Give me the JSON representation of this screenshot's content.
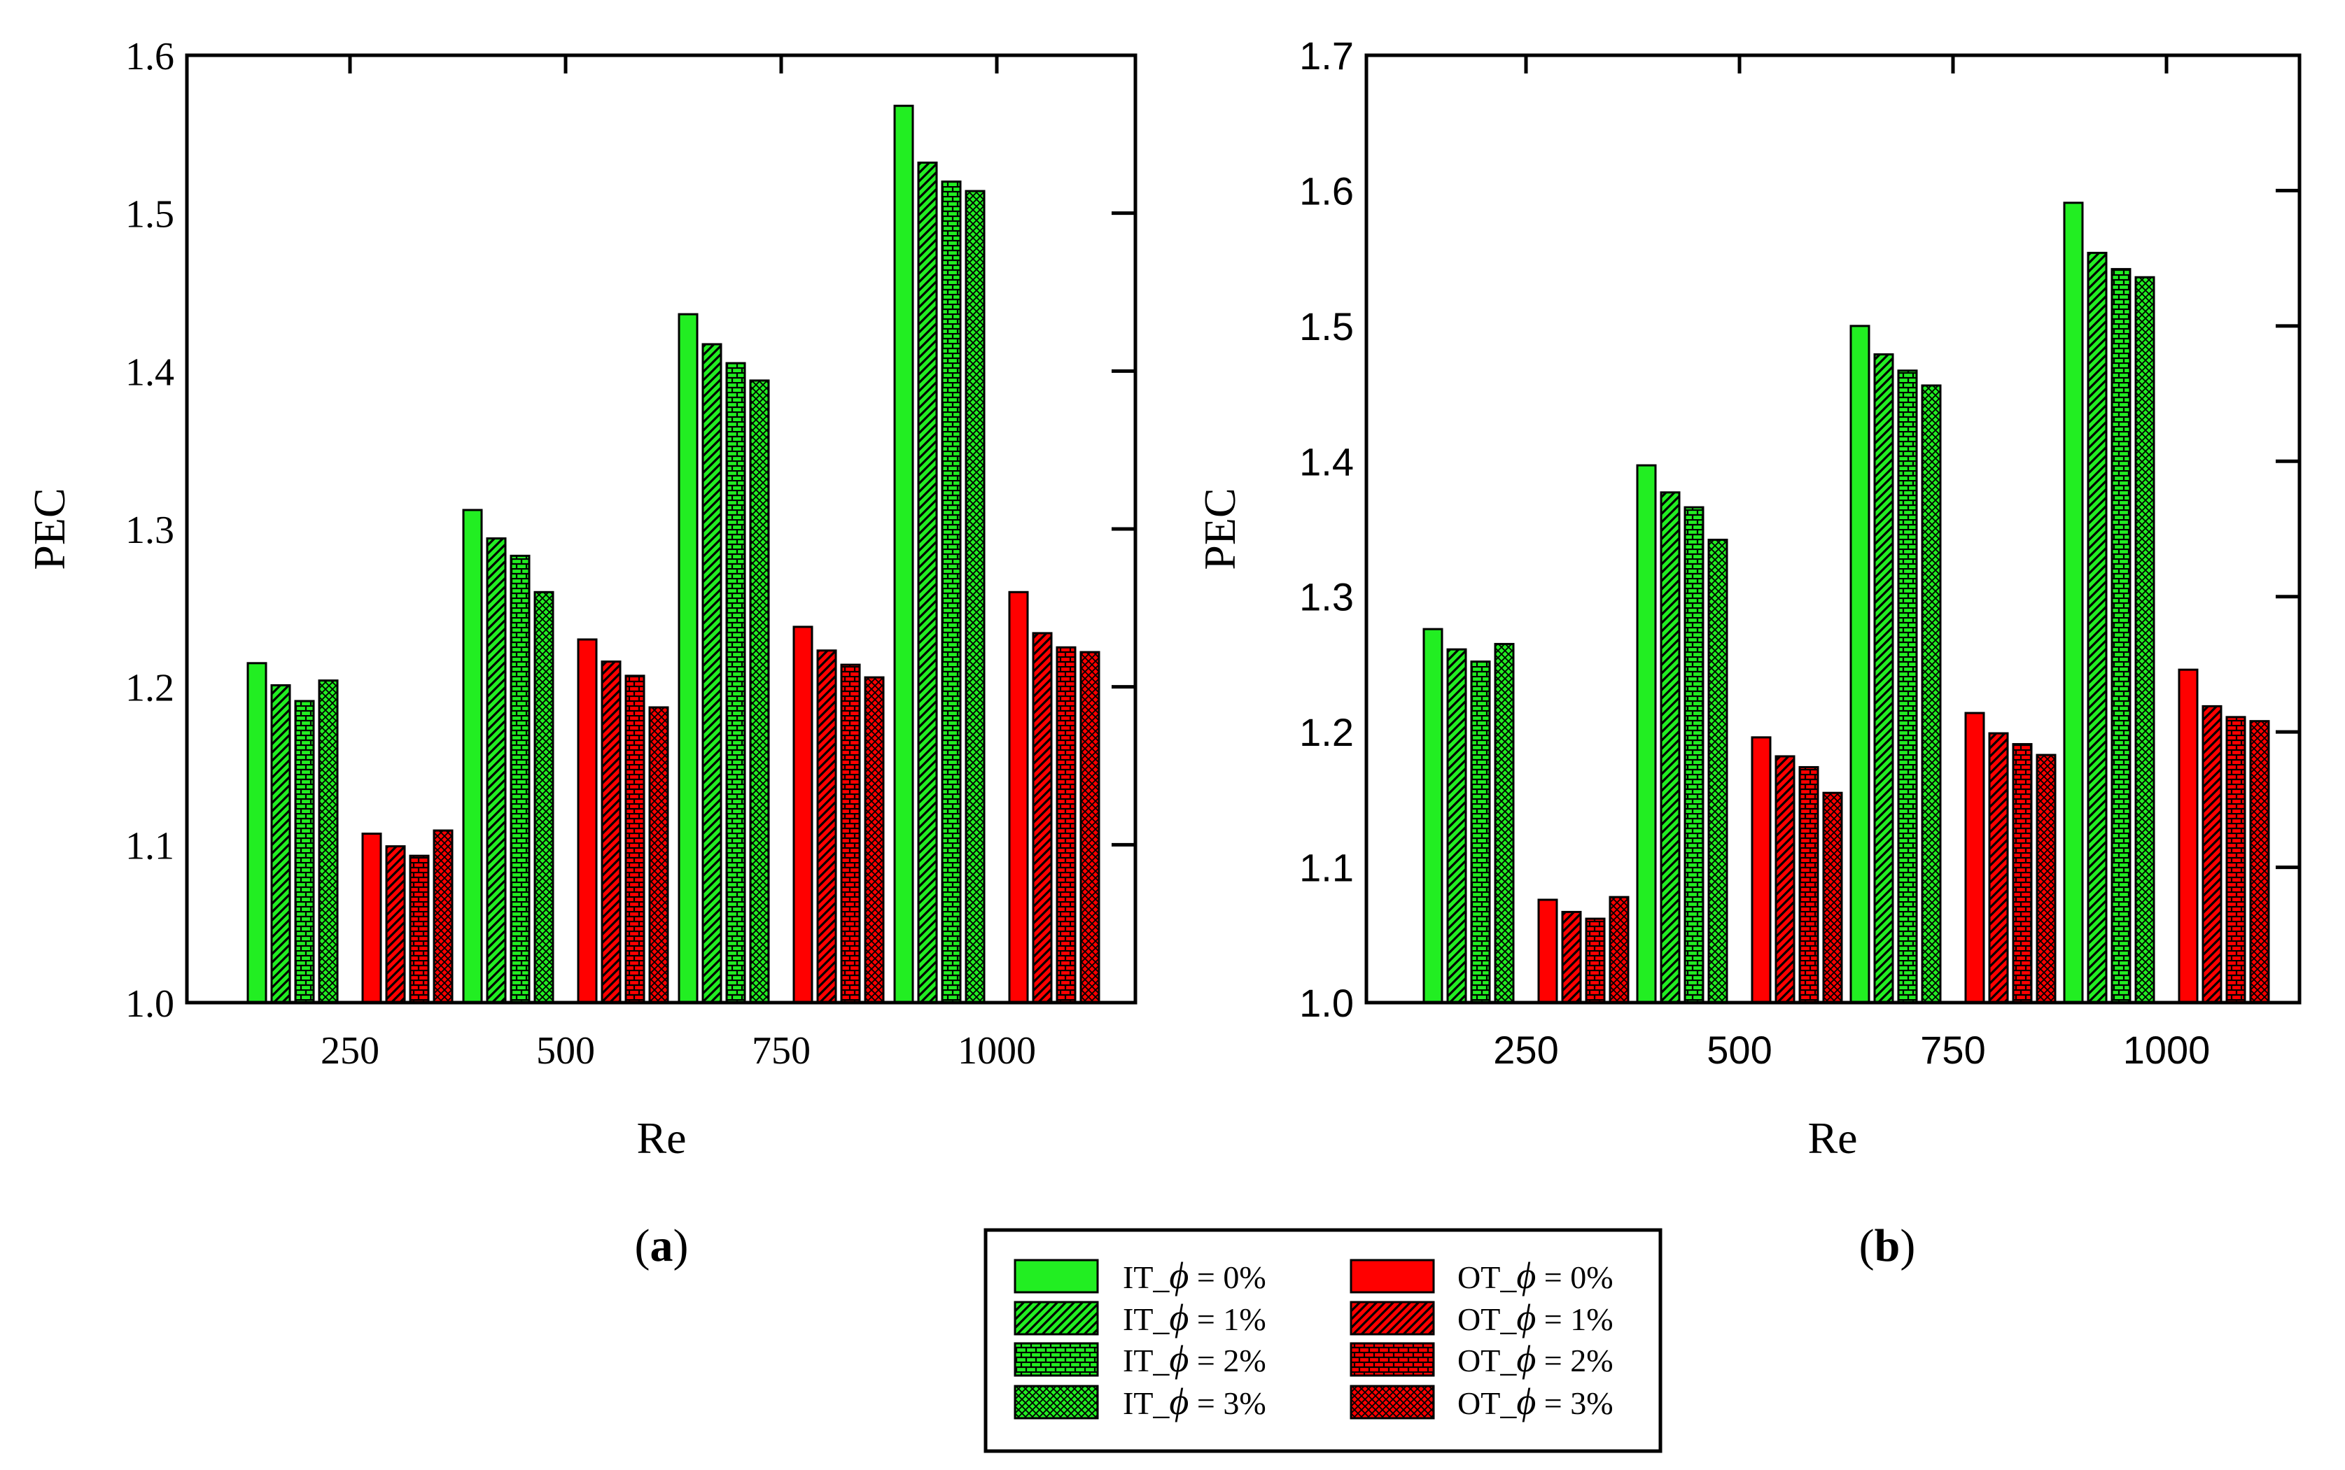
{
  "colors": {
    "it": "#22ee22",
    "ot": "#ff0000",
    "stroke": "#000000"
  },
  "legend": {
    "entries": [
      {
        "group": "IT",
        "prefix": "IT_",
        "symbol": "ϕ",
        "suffix": " = 0%",
        "pattern": "solid"
      },
      {
        "group": "IT",
        "prefix": "IT_",
        "symbol": "ϕ",
        "suffix": " = 1%",
        "pattern": "diag"
      },
      {
        "group": "IT",
        "prefix": "IT_",
        "symbol": "ϕ",
        "suffix": " = 2%",
        "pattern": "grid"
      },
      {
        "group": "IT",
        "prefix": "IT_",
        "symbol": "ϕ",
        "suffix": " = 3%",
        "pattern": "cross"
      },
      {
        "group": "OT",
        "prefix": "OT_",
        "symbol": "ϕ",
        "suffix": " = 0%",
        "pattern": "solid"
      },
      {
        "group": "OT",
        "prefix": "OT_",
        "symbol": "ϕ",
        "suffix": " = 1%",
        "pattern": "diag"
      },
      {
        "group": "OT",
        "prefix": "OT_",
        "symbol": "ϕ",
        "suffix": " = 2%",
        "pattern": "grid"
      },
      {
        "group": "OT",
        "prefix": "OT_",
        "symbol": "ϕ",
        "suffix": " = 3%",
        "pattern": "cross"
      }
    ]
  },
  "chart_data": [
    {
      "type": "bar",
      "panel_label": "a",
      "xlabel": "Re",
      "ylabel": "PEC",
      "categories": [
        "250",
        "500",
        "750",
        "1000"
      ],
      "ylim": [
        1.0,
        1.6
      ],
      "yticks": [
        "1.0",
        "1.1",
        "1.2",
        "1.3",
        "1.4",
        "1.5",
        "1.6"
      ],
      "series": [
        {
          "name": "IT_ϕ = 0%",
          "values": [
            1.215,
            1.312,
            1.436,
            1.568
          ]
        },
        {
          "name": "IT_ϕ = 1%",
          "values": [
            1.201,
            1.294,
            1.417,
            1.532
          ]
        },
        {
          "name": "IT_ϕ = 2%",
          "values": [
            1.191,
            1.283,
            1.405,
            1.52
          ]
        },
        {
          "name": "IT_ϕ = 3%",
          "values": [
            1.204,
            1.26,
            1.394,
            1.514
          ]
        },
        {
          "name": "OT_ϕ = 0%",
          "values": [
            1.107,
            1.23,
            1.238,
            1.26
          ]
        },
        {
          "name": "OT_ϕ = 1%",
          "values": [
            1.099,
            1.216,
            1.223,
            1.234
          ]
        },
        {
          "name": "OT_ϕ = 2%",
          "values": [
            1.093,
            1.207,
            1.214,
            1.225
          ]
        },
        {
          "name": "OT_ϕ = 3%",
          "values": [
            1.109,
            1.187,
            1.206,
            1.222
          ]
        }
      ]
    },
    {
      "type": "bar",
      "panel_label": "b",
      "xlabel": "Re",
      "ylabel": "PEC",
      "categories": [
        "250",
        "500",
        "750",
        "1000"
      ],
      "ylim": [
        1.0,
        1.7
      ],
      "yticks": [
        "1.0",
        "1.1",
        "1.2",
        "1.3",
        "1.4",
        "1.5",
        "1.6",
        "1.7"
      ],
      "series": [
        {
          "name": "IT_ϕ = 0%",
          "values": [
            1.276,
            1.397,
            1.5,
            1.591
          ]
        },
        {
          "name": "IT_ϕ = 1%",
          "values": [
            1.261,
            1.377,
            1.479,
            1.554
          ]
        },
        {
          "name": "IT_ϕ = 2%",
          "values": [
            1.252,
            1.366,
            1.467,
            1.542
          ]
        },
        {
          "name": "IT_ϕ = 3%",
          "values": [
            1.265,
            1.342,
            1.456,
            1.536
          ]
        },
        {
          "name": "OT_ϕ = 0%",
          "values": [
            1.076,
            1.196,
            1.214,
            1.246
          ]
        },
        {
          "name": "OT_ϕ = 1%",
          "values": [
            1.067,
            1.182,
            1.199,
            1.219
          ]
        },
        {
          "name": "OT_ϕ = 2%",
          "values": [
            1.062,
            1.174,
            1.191,
            1.211
          ]
        },
        {
          "name": "OT_ϕ = 3%",
          "values": [
            1.078,
            1.155,
            1.183,
            1.208
          ]
        }
      ]
    }
  ]
}
